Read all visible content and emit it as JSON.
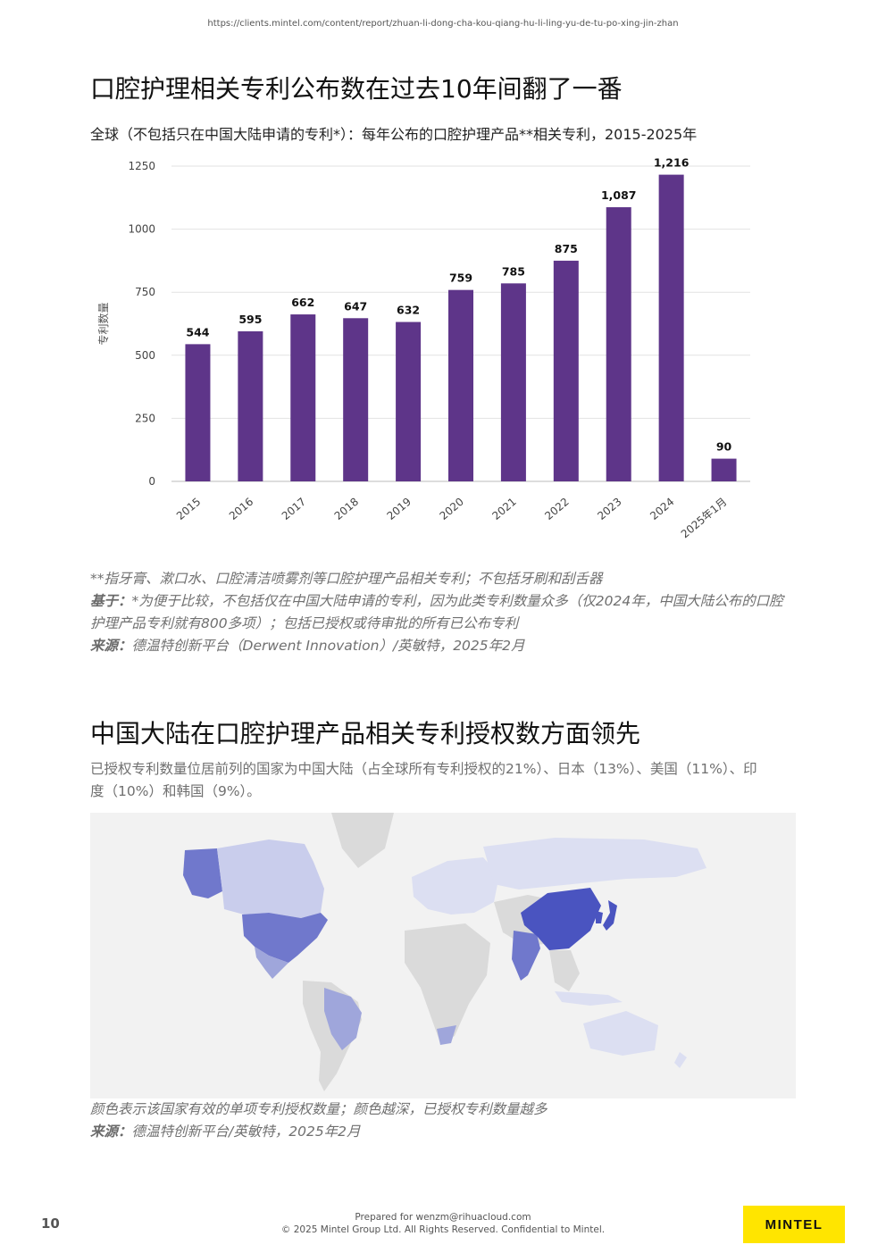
{
  "header": {
    "url": "https://clients.mintel.com/content/report/zhuan-li-dong-cha-kou-qiang-hu-li-ling-yu-de-tu-po-xing-jin-zhan"
  },
  "section1": {
    "title": "口腔护理相关专利公布数在过去10年间翻了一番",
    "subtitle": "全球（不包括只在中国大陆申请的专利*）：每年公布的口腔护理产品**相关专利，2015-2025年",
    "note1": "**指牙膏、漱口水、口腔清洁喷雾剂等口腔护理产品相关专利；不包括牙刷和刮舌器",
    "base_label": "基于：",
    "base_text": "*为便于比较，不包括仅在中国大陆申请的专利，因为此类专利数量众多（仅2024年，中国大陆公布的口腔护理产品专利就有800多项）；包括已授权或待审批的所有已公布专利",
    "source_label": "来源：",
    "source_text": "德温特创新平台（Derwent Innovation）/英敏特，2025年2月"
  },
  "chart_data": {
    "type": "bar",
    "categories": [
      "2015",
      "2016",
      "2017",
      "2018",
      "2019",
      "2020",
      "2021",
      "2022",
      "2023",
      "2024",
      "2025年1月"
    ],
    "values": [
      544,
      595,
      662,
      647,
      632,
      759,
      785,
      875,
      1087,
      1216,
      90
    ],
    "value_labels": [
      "544",
      "595",
      "662",
      "647",
      "632",
      "759",
      "785",
      "875",
      "1,087",
      "1,216",
      "90"
    ],
    "ylabel": "专利数量",
    "yticks": [
      0,
      250,
      500,
      750,
      1000,
      1250
    ],
    "ylim": [
      0,
      1250
    ],
    "grid": true,
    "bar_color": "#5e3589"
  },
  "section2": {
    "title": "中国大陆在口腔护理产品相关专利授权数方面领先",
    "desc": "已授权专利数量位居前列的国家为中国大陆（占全球所有专利授权的21%）、日本（13%）、美国（11%）、印度（10%）和韩国（9%）。",
    "map_legend_note": "颜色表示该国家有效的单项专利授权数量；颜色越深，已授权专利数量越多",
    "source_label": "来源：",
    "source_text": "德温特创新平台/英敏特，2025年2月"
  },
  "map_colors": {
    "top": "#4a54c0",
    "high": "#7078cc",
    "mid": "#9fa6db",
    "low": "#c9cdec",
    "lowest": "#dcdff2",
    "none": "#dadada"
  },
  "footer": {
    "page_number": "10",
    "prepared": "Prepared for wenzm@rihuacloud.com",
    "copyright": "© 2025 Mintel Group Ltd. All Rights Reserved. Confidential to Mintel.",
    "logo": "MINTEL"
  }
}
